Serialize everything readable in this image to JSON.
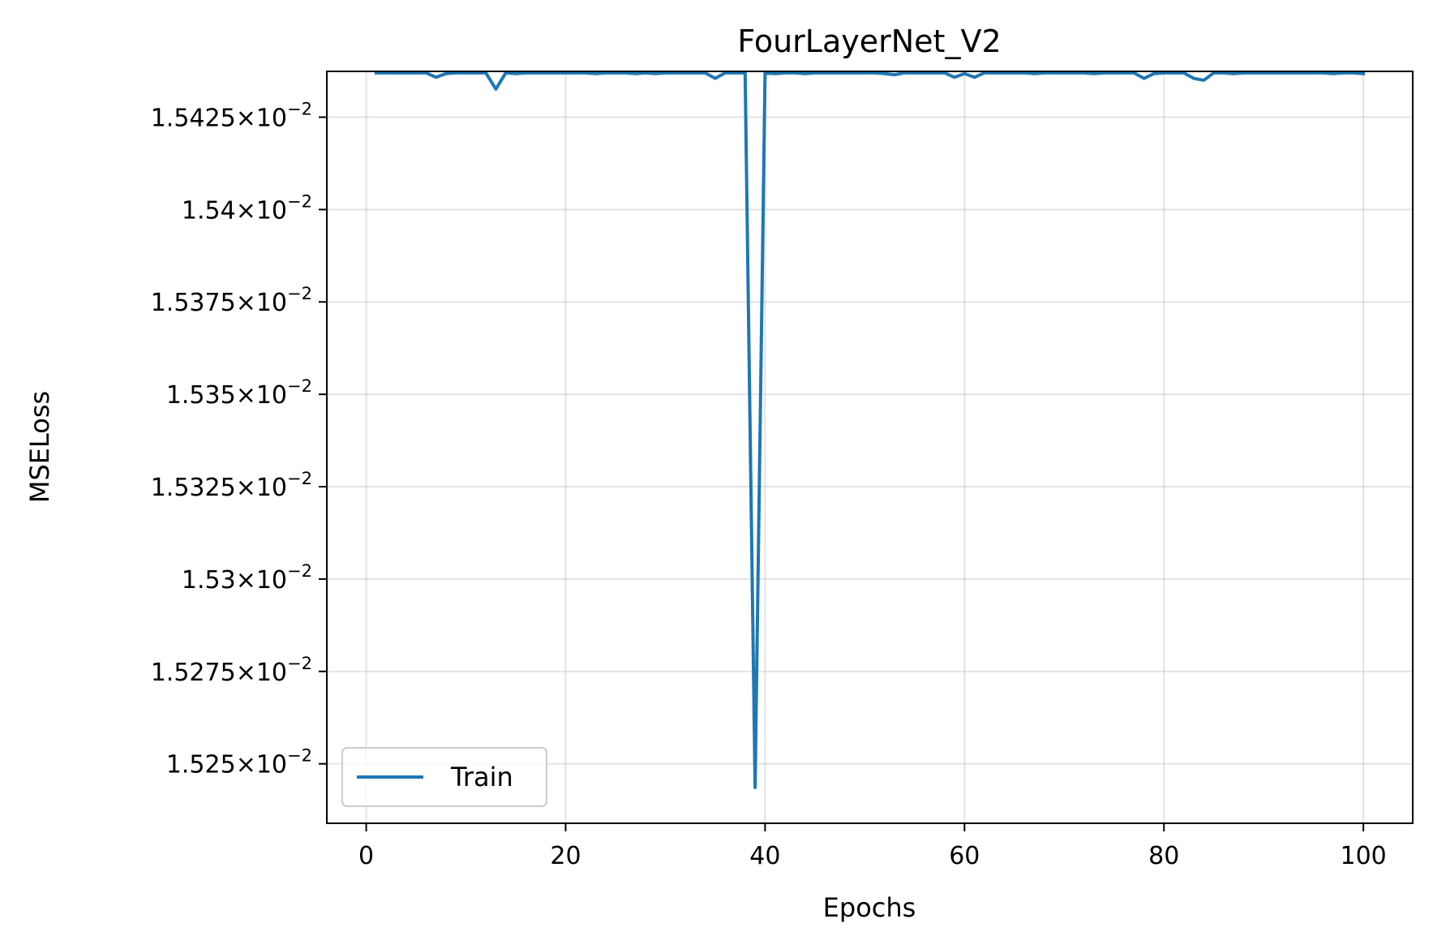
{
  "chart_data": {
    "type": "line",
    "title": "FourLayerNet_V2",
    "xlabel": "Epochs",
    "ylabel": "MSELoss",
    "xlim": [
      -3.95,
      104.95
    ],
    "ylim": [
      0.0152339,
      0.0154374
    ],
    "grid": true,
    "legend_position": "lower-left",
    "x_ticks": [
      {
        "value": 0,
        "label": "0"
      },
      {
        "value": 20,
        "label": "20"
      },
      {
        "value": 40,
        "label": "40"
      },
      {
        "value": 60,
        "label": "60"
      },
      {
        "value": 80,
        "label": "80"
      },
      {
        "value": 100,
        "label": "100"
      }
    ],
    "y_ticks": [
      {
        "value": 0.01525,
        "mantissa": "1.525",
        "base": "10",
        "exponent": "−2"
      },
      {
        "value": 0.015275,
        "mantissa": "1.5275",
        "base": "10",
        "exponent": "−2"
      },
      {
        "value": 0.0153,
        "mantissa": "1.53",
        "base": "10",
        "exponent": "−2"
      },
      {
        "value": 0.015325,
        "mantissa": "1.5325",
        "base": "10",
        "exponent": "−2"
      },
      {
        "value": 0.01535,
        "mantissa": "1.535",
        "base": "10",
        "exponent": "−2"
      },
      {
        "value": 0.015375,
        "mantissa": "1.5375",
        "base": "10",
        "exponent": "−2"
      },
      {
        "value": 0.0154,
        "mantissa": "1.54",
        "base": "10",
        "exponent": "−2"
      },
      {
        "value": 0.015425,
        "mantissa": "1.5425",
        "base": "10",
        "exponent": "−2"
      }
    ],
    "series": [
      {
        "name": "Train",
        "color": "#1f77b4",
        "x": [
          1,
          2,
          3,
          4,
          5,
          6,
          7,
          8,
          9,
          10,
          11,
          12,
          13,
          14,
          15,
          16,
          17,
          18,
          19,
          20,
          21,
          22,
          23,
          24,
          25,
          26,
          27,
          28,
          29,
          30,
          31,
          32,
          33,
          34,
          35,
          36,
          37,
          38,
          39,
          40,
          41,
          42,
          43,
          44,
          45,
          46,
          47,
          48,
          49,
          50,
          51,
          52,
          53,
          54,
          55,
          56,
          57,
          58,
          59,
          60,
          61,
          62,
          63,
          64,
          65,
          66,
          67,
          68,
          69,
          70,
          71,
          72,
          73,
          74,
          75,
          76,
          77,
          78,
          79,
          80,
          81,
          82,
          83,
          84,
          85,
          86,
          87,
          88,
          89,
          90,
          91,
          92,
          93,
          94,
          95,
          96,
          97,
          98,
          99,
          100
        ],
        "values": [
          0.015437,
          0.015437,
          0.015437,
          0.015437,
          0.015437,
          0.015437,
          0.0154358,
          0.0154368,
          0.015437,
          0.015437,
          0.015437,
          0.015437,
          0.0154326,
          0.015437,
          0.0154368,
          0.015437,
          0.015437,
          0.015437,
          0.015437,
          0.015437,
          0.015437,
          0.015437,
          0.0154368,
          0.015437,
          0.015437,
          0.015437,
          0.0154368,
          0.015437,
          0.0154368,
          0.015437,
          0.015437,
          0.015437,
          0.015437,
          0.015437,
          0.0154355,
          0.015437,
          0.015437,
          0.015437,
          0.0152436,
          0.015437,
          0.0154368,
          0.015437,
          0.015437,
          0.0154368,
          0.015437,
          0.015437,
          0.015437,
          0.015437,
          0.015437,
          0.015437,
          0.015437,
          0.0154368,
          0.0154365,
          0.015437,
          0.015437,
          0.015437,
          0.015437,
          0.015437,
          0.0154358,
          0.0154368,
          0.0154358,
          0.015437,
          0.015437,
          0.015437,
          0.015437,
          0.015437,
          0.0154368,
          0.015437,
          0.015437,
          0.015437,
          0.015437,
          0.015437,
          0.0154368,
          0.015437,
          0.015437,
          0.015437,
          0.015437,
          0.0154355,
          0.0154368,
          0.015437,
          0.015437,
          0.015437,
          0.0154355,
          0.015435,
          0.015437,
          0.015437,
          0.0154368,
          0.015437,
          0.015437,
          0.015437,
          0.015437,
          0.015437,
          0.015437,
          0.015437,
          0.015437,
          0.015437,
          0.0154368,
          0.015437,
          0.015437,
          0.0154368
        ]
      }
    ]
  }
}
